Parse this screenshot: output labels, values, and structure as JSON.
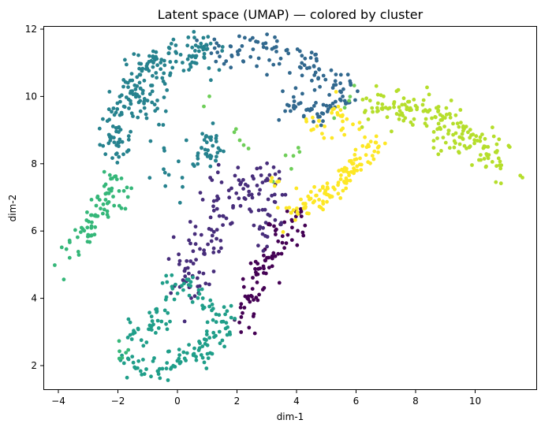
{
  "chart_data": {
    "type": "scatter",
    "title": "Latent space (UMAP) — colored by cluster",
    "xlabel": "dim-1",
    "ylabel": "dim-2",
    "xlim": [
      -4.5,
      11.5
    ],
    "ylim": [
      1.3,
      12.1
    ],
    "xticks": [
      -4,
      -2,
      0,
      2,
      4,
      6,
      8,
      10
    ],
    "xtick_labels": [
      "−4",
      "−2",
      "0",
      "2",
      "4",
      "6",
      "8",
      "10"
    ],
    "yticks": [
      2,
      4,
      6,
      8,
      10,
      12
    ],
    "ytick_labels": [
      "2",
      "4",
      "6",
      "8",
      "10",
      "12"
    ],
    "grid": false,
    "legend": "none",
    "colormap": "viridis",
    "marker_size": 3,
    "clusters": [
      {
        "id": 0,
        "color": "#440154",
        "count": 90,
        "path": [
          [
            2.0,
            3.1
          ],
          [
            2.4,
            4.0
          ],
          [
            3.0,
            5.0
          ],
          [
            3.5,
            6.0
          ],
          [
            4.2,
            6.4
          ]
        ],
        "spread": 0.28
      },
      {
        "id": 1,
        "color": "#472d7b",
        "count": 110,
        "path": [
          [
            0.2,
            5.0
          ],
          [
            1.2,
            6.0
          ],
          [
            1.6,
            7.0
          ],
          [
            2.6,
            7.3
          ],
          [
            3.5,
            7.4
          ]
        ],
        "spread": 0.35,
        "extra_blobs": [
          [
            0.6,
            4.5,
            0.35,
            25
          ],
          [
            3.0,
            6.2,
            0.3,
            20
          ]
        ]
      },
      {
        "id": 2,
        "color": "#31688e",
        "count": 150,
        "path": [
          [
            1.0,
            11.4
          ],
          [
            2.5,
            11.5
          ],
          [
            3.5,
            11.3
          ],
          [
            4.5,
            11.0
          ],
          [
            5.6,
            10.2
          ],
          [
            4.5,
            9.3
          ],
          [
            3.6,
            10.0
          ]
        ],
        "spread": 0.25
      },
      {
        "id": 3,
        "color": "#26828e",
        "count": 190,
        "path": [
          [
            -2.1,
            8.2
          ],
          [
            -2.0,
            9.5
          ],
          [
            -1.2,
            10.8
          ],
          [
            0.0,
            11.3
          ],
          [
            1.0,
            11.4
          ]
        ],
        "spread": 0.3,
        "extra_blobs": [
          [
            1.0,
            8.5,
            0.3,
            35
          ],
          [
            -0.5,
            7.8,
            0.5,
            15
          ],
          [
            -1.0,
            9.8,
            0.35,
            25
          ]
        ]
      },
      {
        "id": 4,
        "color": "#1f9e89",
        "count": 170,
        "path": [
          [
            -1.8,
            2.2
          ],
          [
            -1.0,
            1.9
          ],
          [
            0.0,
            2.1
          ],
          [
            1.0,
            2.5
          ],
          [
            1.6,
            3.3
          ],
          [
            0.8,
            4.0
          ],
          [
            -0.2,
            4.6
          ],
          [
            -0.5,
            3.3
          ],
          [
            -1.6,
            3.0
          ]
        ],
        "spread": 0.22
      },
      {
        "id": 5,
        "color": "#35b779",
        "count": 70,
        "path": [
          [
            -3.7,
            5.2
          ],
          [
            -3.0,
            6.0
          ],
          [
            -2.5,
            7.0
          ],
          [
            -2.0,
            7.8
          ]
        ],
        "spread": 0.18,
        "extra_blobs": [
          [
            -1.7,
            7.1,
            0.2,
            8
          ],
          [
            -1.9,
            2.4,
            0.15,
            6
          ]
        ]
      },
      {
        "id": 6,
        "color": "#6ece58",
        "count": 18,
        "path": [
          [
            0.3,
            10.4
          ],
          [
            3.2,
            7.7
          ],
          [
            5.3,
            9.4
          ],
          [
            6.2,
            10.3
          ]
        ],
        "spread": 0.15
      },
      {
        "id": 7,
        "color": "#b5de2b",
        "count": 180,
        "path": [
          [
            6.3,
            9.4
          ],
          [
            7.0,
            9.6
          ],
          [
            8.0,
            9.7
          ],
          [
            9.0,
            9.0
          ],
          [
            10.0,
            8.6
          ],
          [
            11.0,
            8.0
          ]
        ],
        "spread": 0.3
      },
      {
        "id": 8,
        "color": "#fde725",
        "count": 120,
        "path": [
          [
            3.8,
            6.5
          ],
          [
            4.8,
            7.0
          ],
          [
            5.5,
            7.6
          ],
          [
            6.3,
            8.2
          ],
          [
            6.5,
            8.6
          ]
        ],
        "spread": 0.22,
        "extra_blobs": [
          [
            5.5,
            9.3,
            0.3,
            20
          ],
          [
            4.5,
            9.0,
            0.2,
            10
          ],
          [
            3.2,
            7.5,
            0.12,
            5
          ]
        ]
      }
    ]
  }
}
